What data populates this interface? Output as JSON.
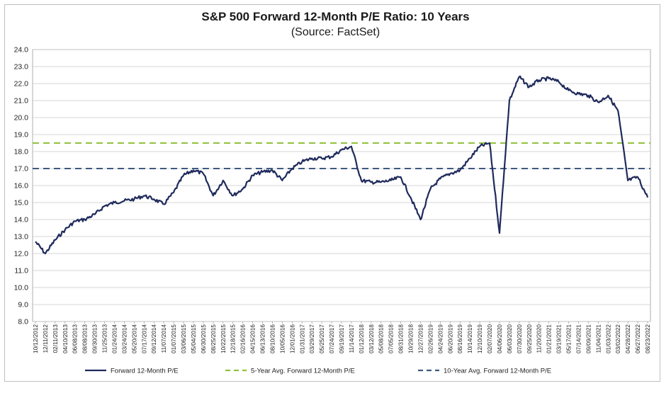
{
  "chart_data": {
    "type": "line",
    "title": "S&P 500 Forward 12-Month P/E Ratio: 10 Years",
    "subtitle": "(Source: FactSet)",
    "xlabel": "",
    "ylabel": "",
    "ylim": [
      8.0,
      24.0
    ],
    "y_ticks": [
      "8.0",
      "9.0",
      "10.0",
      "11.0",
      "12.0",
      "13.0",
      "14.0",
      "15.0",
      "16.0",
      "17.0",
      "18.0",
      "19.0",
      "20.0",
      "21.0",
      "22.0",
      "23.0",
      "24.0"
    ],
    "x_ticks": [
      "10/12/2012",
      "12/11/2012",
      "02/11/2013",
      "04/10/2013",
      "06/08/2013",
      "08/08/2013",
      "09/30/2013",
      "11/25/2013",
      "01/24/2014",
      "03/24/2014",
      "05/20/2014",
      "07/17/2014",
      "09/12/2014",
      "11/07/2014",
      "01/07/2015",
      "03/06/2015",
      "05/04/2015",
      "06/30/2015",
      "08/25/2015",
      "10/22/2015",
      "12/18/2015",
      "02/16/2016",
      "04/15/2016",
      "06/13/2016",
      "08/10/2016",
      "10/05/2016",
      "12/01/2016",
      "01/31/2017",
      "03/29/2017",
      "05/25/2017",
      "07/24/2017",
      "09/19/2017",
      "11/14/2017",
      "01/12/2018",
      "03/12/2018",
      "05/08/2018",
      "07/05/2018",
      "08/31/2018",
      "10/29/2018",
      "12/27/2018",
      "02/26/2019",
      "04/24/2019",
      "06/20/2019",
      "08/16/2019",
      "10/14/2019",
      "12/10/2019",
      "02/07/2020",
      "04/06/2020",
      "06/03/2020",
      "07/30/2020",
      "09/25/2020",
      "11/20/2020",
      "01/21/2021",
      "03/19/2021",
      "05/17/2021",
      "07/14/2021",
      "09/09/2021",
      "11/04/2021",
      "01/03/2022",
      "03/02/2022",
      "04/28/2022",
      "06/27/2022",
      "08/23/2022"
    ],
    "grid": true,
    "legend_position": "bottom",
    "series": [
      {
        "name": "Forward 12-Month P/E",
        "color": "#1f2a5c",
        "style": "solid",
        "x": [
          "10/12/2012",
          "12/11/2012",
          "02/11/2013",
          "04/10/2013",
          "06/08/2013",
          "08/08/2013",
          "09/30/2013",
          "11/25/2013",
          "01/24/2014",
          "03/24/2014",
          "05/20/2014",
          "07/17/2014",
          "09/12/2014",
          "11/07/2014",
          "01/07/2015",
          "03/06/2015",
          "05/04/2015",
          "06/30/2015",
          "08/25/2015",
          "10/22/2015",
          "12/18/2015",
          "02/16/2016",
          "04/15/2016",
          "06/13/2016",
          "08/10/2016",
          "10/05/2016",
          "12/01/2016",
          "01/31/2017",
          "03/29/2017",
          "05/25/2017",
          "07/24/2017",
          "09/19/2017",
          "11/14/2017",
          "01/12/2018",
          "03/12/2018",
          "05/08/2018",
          "07/05/2018",
          "08/31/2018",
          "10/29/2018",
          "12/27/2018",
          "02/26/2019",
          "04/24/2019",
          "06/20/2019",
          "08/16/2019",
          "10/14/2019",
          "12/10/2019",
          "02/07/2020",
          "04/06/2020",
          "06/03/2020",
          "07/30/2020",
          "09/25/2020",
          "11/20/2020",
          "01/21/2021",
          "03/19/2021",
          "05/17/2021",
          "07/14/2021",
          "09/09/2021",
          "11/04/2021",
          "01/03/2022",
          "03/02/2022",
          "04/28/2022",
          "06/27/2022",
          "08/23/2022"
        ],
        "values": [
          12.7,
          12.0,
          12.8,
          13.4,
          13.9,
          14.0,
          14.3,
          14.8,
          15.0,
          15.1,
          15.2,
          15.4,
          15.2,
          14.9,
          15.6,
          16.6,
          16.9,
          16.7,
          15.4,
          16.3,
          15.4,
          15.8,
          16.6,
          16.8,
          16.9,
          16.3,
          17.0,
          17.4,
          17.6,
          17.6,
          17.7,
          18.1,
          18.3,
          16.3,
          16.2,
          16.2,
          16.3,
          16.5,
          15.3,
          14.0,
          15.8,
          16.4,
          16.7,
          16.9,
          17.6,
          18.3,
          18.5,
          13.2,
          21.0,
          22.4,
          21.8,
          22.2,
          22.3,
          22.1,
          21.6,
          21.4,
          21.3,
          20.9,
          21.3,
          20.4,
          16.3,
          16.5,
          15.3
        ]
      },
      {
        "name": "5-Year Avg. Forward 12-Month P/E",
        "color": "#92c13d",
        "style": "dashed",
        "value": 18.5
      },
      {
        "name": "10-Year Avg. Forward 12-Month P/E",
        "color": "#3d5a80",
        "style": "dashed",
        "value": 17.0
      }
    ]
  }
}
